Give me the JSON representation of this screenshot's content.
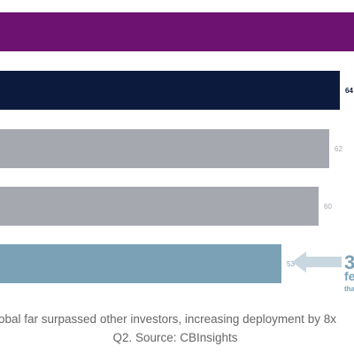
{
  "chart_data": {
    "type": "bar",
    "orientation": "horizontal",
    "categories": [
      "",
      "",
      "",
      "",
      ""
    ],
    "values": [
      null,
      64,
      62,
      60,
      53
    ],
    "value_labels": [
      "",
      "64",
      "62",
      "60",
      "53"
    ],
    "title": "",
    "xlabel": "",
    "ylabel": "",
    "xlim": [
      0,
      64
    ],
    "grid": false,
    "colors": [
      "#6e1271",
      "#0c1a3d",
      "#a6a8b0",
      "#a6a8b0",
      "#7aa1b6"
    ],
    "label_colors": [
      "#6e1271",
      "#0c1a3d",
      "#a6a8b0",
      "#a6a8b0",
      "#7aa1b6"
    ],
    "callout": {
      "big_text": "3",
      "mid_text": "fe",
      "small_text": "tha",
      "arrow_color": "#c9d7e0",
      "text_color": "#7aa1b6"
    }
  },
  "caption": {
    "line1": "obal far surpassed other investors, increasing deployment by 8x",
    "line2": "Q2. Source: CBInsights"
  }
}
